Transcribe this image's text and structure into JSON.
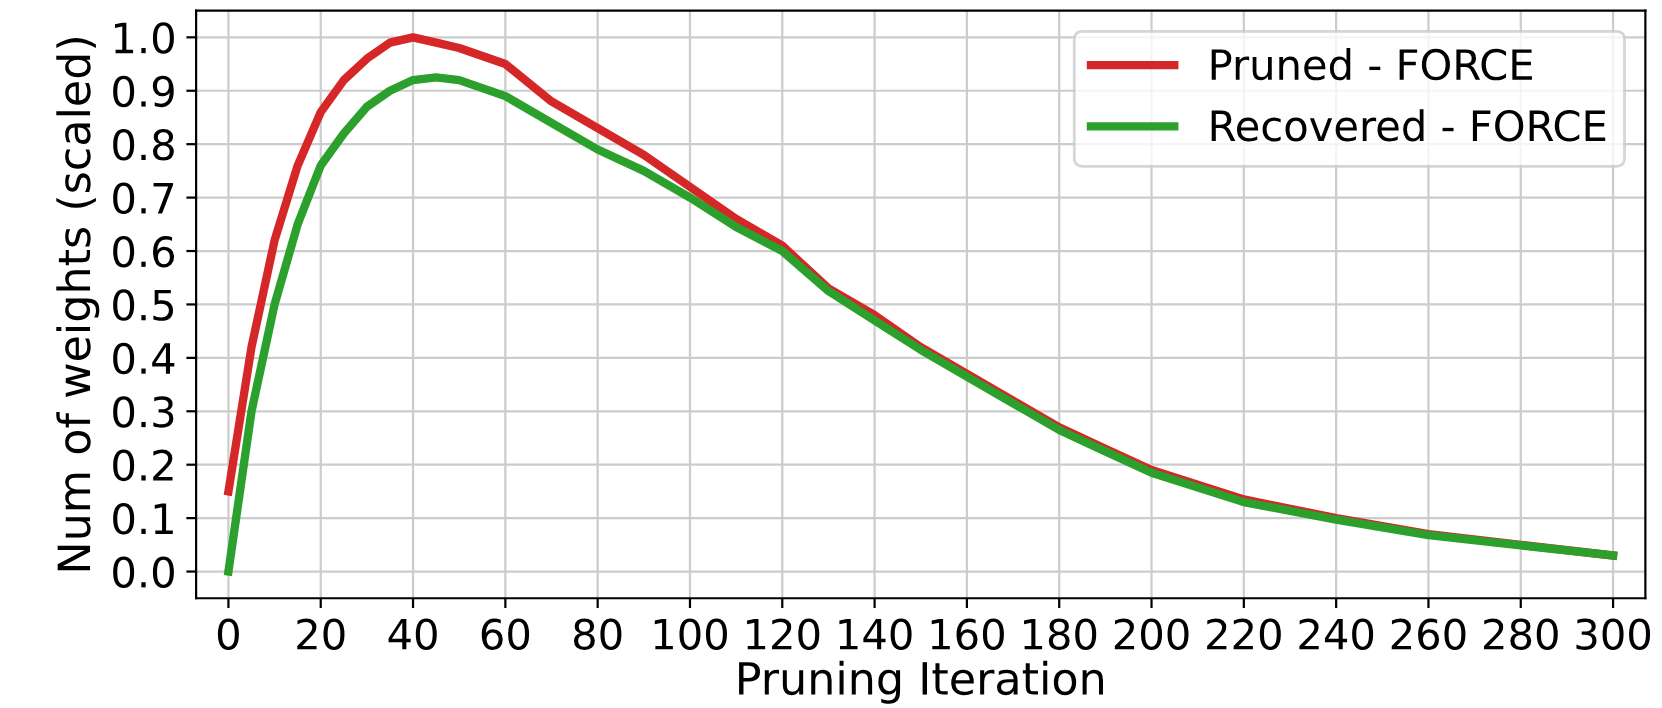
{
  "chart_data": {
    "type": "line",
    "xlabel": "Pruning Iteration",
    "ylabel": "Num of weights (scaled)",
    "xlim": [
      -7,
      307
    ],
    "ylim": [
      -0.05,
      1.05
    ],
    "xticks": [
      0,
      20,
      40,
      60,
      80,
      100,
      120,
      140,
      160,
      180,
      200,
      220,
      240,
      260,
      280,
      300
    ],
    "yticks": [
      {
        "value": 0,
        "label": "0.0"
      },
      0.1,
      0.2,
      0.3,
      0.4,
      0.5,
      0.6,
      0.7,
      0.8,
      0.9,
      {
        "value": 1,
        "label": "1.0"
      }
    ],
    "grid": true,
    "legend": "top right",
    "marker": "none",
    "line_style": "solid",
    "series": [
      {
        "name": "Pruned - FORCE",
        "color": "#d62728",
        "x": [
          0,
          5,
          10,
          15,
          20,
          25,
          30,
          35,
          40,
          45,
          50,
          60,
          70,
          80,
          90,
          100,
          110,
          120,
          130,
          140,
          150,
          160,
          170,
          180,
          190,
          200,
          220,
          240,
          260,
          280,
          300
        ],
        "values": [
          0.15,
          0.42,
          0.62,
          0.76,
          0.86,
          0.92,
          0.96,
          0.99,
          1.0,
          0.99,
          0.98,
          0.95,
          0.88,
          0.83,
          0.78,
          0.72,
          0.66,
          0.61,
          0.53,
          0.48,
          0.42,
          0.37,
          0.32,
          0.27,
          0.23,
          0.19,
          0.135,
          0.1,
          0.07,
          0.05,
          0.03
        ]
      },
      {
        "name": "Recovered - FORCE",
        "color": "#2ca02c",
        "x": [
          0,
          5,
          10,
          15,
          20,
          25,
          30,
          35,
          40,
          45,
          50,
          60,
          70,
          80,
          90,
          100,
          110,
          120,
          130,
          140,
          150,
          160,
          170,
          180,
          190,
          200,
          220,
          240,
          260,
          280,
          300
        ],
        "values": [
          0.0,
          0.3,
          0.5,
          0.65,
          0.76,
          0.82,
          0.87,
          0.9,
          0.92,
          0.925,
          0.92,
          0.89,
          0.84,
          0.79,
          0.75,
          0.7,
          0.645,
          0.6,
          0.525,
          0.47,
          0.415,
          0.365,
          0.315,
          0.265,
          0.225,
          0.185,
          0.13,
          0.097,
          0.068,
          0.049,
          0.03
        ]
      }
    ]
  }
}
